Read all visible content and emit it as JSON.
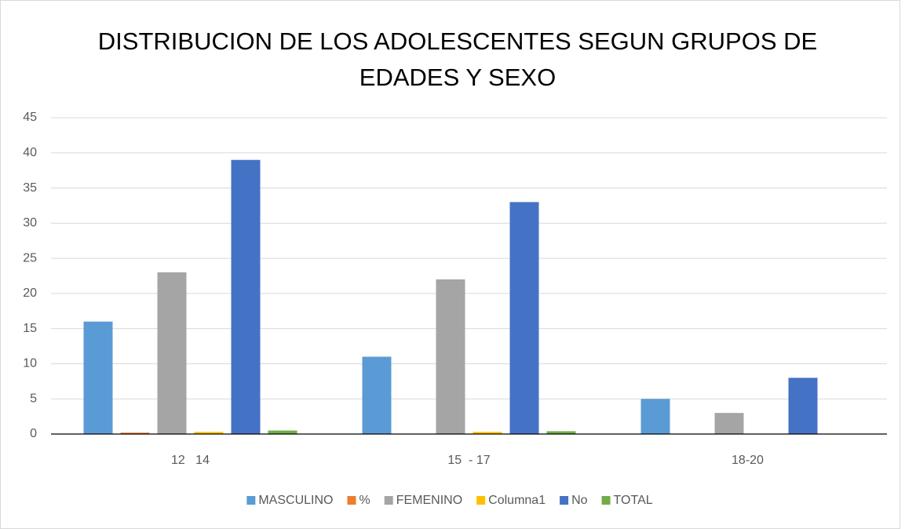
{
  "chart_data": {
    "type": "bar",
    "title": [
      "DISTRIBUCION DE LOS ADOLESCENTES SEGUN GRUPOS DE",
      "EDADES Y SEXO"
    ],
    "categories": [
      "12   14",
      "15  - 17",
      "18-20"
    ],
    "series": [
      {
        "name": "MASCULINO",
        "color": "#5B9BD5",
        "values": [
          16,
          11,
          5
        ]
      },
      {
        "name": "%",
        "color": "#ED7D31",
        "values": [
          0.2,
          0,
          0
        ]
      },
      {
        "name": "FEMENINO",
        "color": "#A5A5A5",
        "values": [
          23,
          22,
          3
        ]
      },
      {
        "name": "Columna1",
        "color": "#FFC000",
        "values": [
          0.3,
          0.3,
          0
        ]
      },
      {
        "name": "No",
        "color": "#4472C4",
        "values": [
          39,
          33,
          8
        ]
      },
      {
        "name": "TOTAL",
        "color": "#70AD47",
        "values": [
          0.5,
          0.4,
          0
        ]
      }
    ],
    "ylim": [
      0,
      45
    ],
    "yticks": [
      0,
      5,
      10,
      15,
      20,
      25,
      30,
      35,
      40,
      45
    ],
    "grid": true,
    "legend": "bottom"
  }
}
